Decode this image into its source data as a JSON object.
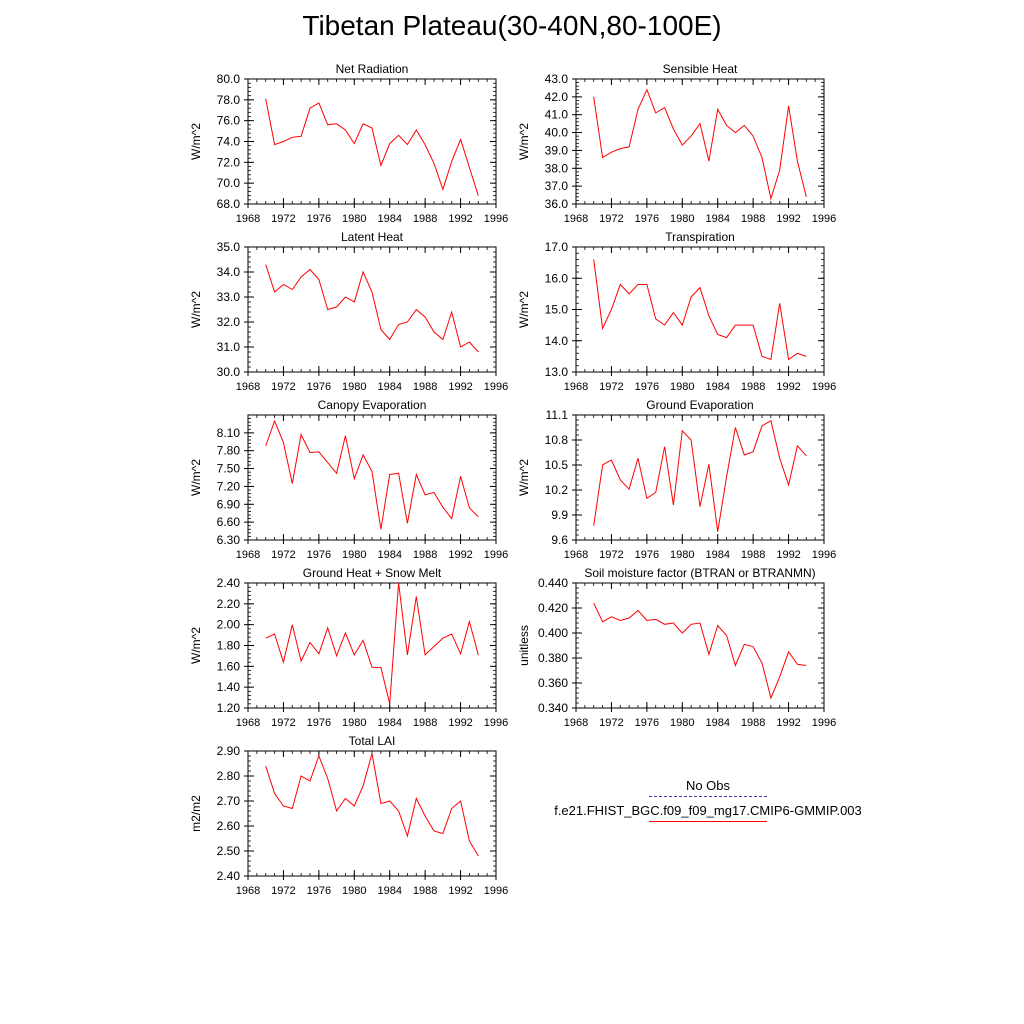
{
  "title": "Tibetan Plateau(30-40N,80-100E)",
  "line_color": "#ff0000",
  "obs_color": "#3a3aa8",
  "legend": {
    "obs_label": "No Obs",
    "model_label": "f.e21.FHIST_BGC.f09_f09_mg17.CMIP6-GMMIP.003"
  },
  "chart_data": [
    {
      "type": "line",
      "title": "Net Radiation",
      "xlabel": "",
      "ylabel": "W/m^2",
      "xlim": [
        1968,
        1996
      ],
      "ylim": [
        68,
        80
      ],
      "xticks": [
        1968,
        1972,
        1976,
        1980,
        1984,
        1988,
        1992,
        1996
      ],
      "xtick_labels": [
        "1968",
        "1972",
        "1976",
        "1980",
        "1984",
        "1988",
        "1992",
        "1996"
      ],
      "yticks": [
        68,
        70,
        72,
        74,
        76,
        78,
        80
      ],
      "ytick_labels": [
        "68.0",
        "70.0",
        "72.0",
        "74.0",
        "76.0",
        "78.0",
        "80.0"
      ],
      "x": [
        1970,
        1971,
        1972,
        1973,
        1974,
        1975,
        1976,
        1977,
        1978,
        1979,
        1980,
        1981,
        1982,
        1983,
        1984,
        1985,
        1986,
        1987,
        1988,
        1989,
        1990,
        1991,
        1992,
        1993,
        1994
      ],
      "y": [
        78.1,
        73.7,
        74.0,
        74.4,
        74.5,
        77.2,
        77.7,
        75.6,
        75.7,
        75.1,
        73.8,
        75.7,
        75.3,
        71.7,
        73.8,
        74.6,
        73.7,
        75.1,
        73.7,
        71.9,
        69.4,
        72.1,
        74.2,
        71.5,
        68.8
      ]
    },
    {
      "type": "line",
      "title": "Sensible Heat",
      "xlabel": "",
      "ylabel": "W/m^2",
      "xlim": [
        1968,
        1996
      ],
      "ylim": [
        36,
        43
      ],
      "xticks": [
        1968,
        1972,
        1976,
        1980,
        1984,
        1988,
        1992,
        1996
      ],
      "xtick_labels": [
        "1968",
        "1972",
        "1976",
        "1980",
        "1984",
        "1988",
        "1992",
        "1996"
      ],
      "yticks": [
        36,
        37,
        38,
        39,
        40,
        41,
        42,
        43
      ],
      "ytick_labels": [
        "36.0",
        "37.0",
        "38.0",
        "39.0",
        "40.0",
        "41.0",
        "42.0",
        "43.0"
      ],
      "x": [
        1970,
        1971,
        1972,
        1973,
        1974,
        1975,
        1976,
        1977,
        1978,
        1979,
        1980,
        1981,
        1982,
        1983,
        1984,
        1985,
        1986,
        1987,
        1988,
        1989,
        1990,
        1991,
        1992,
        1993,
        1994
      ],
      "y": [
        42.0,
        38.6,
        38.9,
        39.1,
        39.2,
        41.3,
        42.4,
        41.1,
        41.4,
        40.2,
        39.3,
        39.8,
        40.5,
        38.4,
        41.3,
        40.4,
        40.0,
        40.4,
        39.8,
        38.6,
        36.3,
        37.9,
        41.5,
        38.4,
        36.4
      ]
    },
    {
      "type": "line",
      "title": "Latent Heat",
      "xlabel": "",
      "ylabel": "W/m^2",
      "xlim": [
        1968,
        1996
      ],
      "ylim": [
        30,
        35
      ],
      "xticks": [
        1968,
        1972,
        1976,
        1980,
        1984,
        1988,
        1992,
        1996
      ],
      "xtick_labels": [
        "1968",
        "1972",
        "1976",
        "1980",
        "1984",
        "1988",
        "1992",
        "1996"
      ],
      "yticks": [
        30,
        31,
        32,
        33,
        34,
        35
      ],
      "ytick_labels": [
        "30.0",
        "31.0",
        "32.0",
        "33.0",
        "34.0",
        "35.0"
      ],
      "x": [
        1970,
        1971,
        1972,
        1973,
        1974,
        1975,
        1976,
        1977,
        1978,
        1979,
        1980,
        1981,
        1982,
        1983,
        1984,
        1985,
        1986,
        1987,
        1988,
        1989,
        1990,
        1991,
        1992,
        1993,
        1994
      ],
      "y": [
        34.3,
        33.2,
        33.5,
        33.3,
        33.8,
        34.1,
        33.7,
        32.5,
        32.6,
        33.0,
        32.8,
        34.0,
        33.2,
        31.7,
        31.3,
        31.9,
        32.0,
        32.5,
        32.2,
        31.6,
        31.3,
        32.4,
        31.0,
        31.2,
        30.8
      ]
    },
    {
      "type": "line",
      "title": "Transpiration",
      "xlabel": "",
      "ylabel": "W/m^2",
      "xlim": [
        1968,
        1996
      ],
      "ylim": [
        13,
        17
      ],
      "xticks": [
        1968,
        1972,
        1976,
        1980,
        1984,
        1988,
        1992,
        1996
      ],
      "xtick_labels": [
        "1968",
        "1972",
        "1976",
        "1980",
        "1984",
        "1988",
        "1992",
        "1996"
      ],
      "yticks": [
        13,
        14,
        15,
        16,
        17
      ],
      "ytick_labels": [
        "13.0",
        "14.0",
        "15.0",
        "16.0",
        "17.0"
      ],
      "x": [
        1970,
        1971,
        1972,
        1973,
        1974,
        1975,
        1976,
        1977,
        1978,
        1979,
        1980,
        1981,
        1982,
        1983,
        1984,
        1985,
        1986,
        1987,
        1988,
        1989,
        1990,
        1991,
        1992,
        1993,
        1994
      ],
      "y": [
        16.6,
        14.4,
        15.0,
        15.8,
        15.5,
        15.8,
        15.8,
        14.7,
        14.5,
        14.9,
        14.5,
        15.4,
        15.7,
        14.8,
        14.2,
        14.1,
        14.5,
        14.5,
        14.5,
        13.5,
        13.4,
        15.2,
        13.4,
        13.6,
        13.5
      ]
    },
    {
      "type": "line",
      "title": "Canopy Evaporation",
      "xlabel": "",
      "ylabel": "W/m^2",
      "xlim": [
        1968,
        1996
      ],
      "ylim": [
        6.3,
        8.4
      ],
      "xticks": [
        1968,
        1972,
        1976,
        1980,
        1984,
        1988,
        1992,
        1996
      ],
      "xtick_labels": [
        "1968",
        "1972",
        "1976",
        "1980",
        "1984",
        "1988",
        "1992",
        "1996"
      ],
      "yticks": [
        6.3,
        6.6,
        6.9,
        7.2,
        7.5,
        7.8,
        8.1
      ],
      "ytick_labels": [
        "6.30",
        "6.60",
        "6.90",
        "7.20",
        "7.50",
        "7.80",
        "8.10"
      ],
      "x": [
        1970,
        1971,
        1972,
        1973,
        1974,
        1975,
        1976,
        1977,
        1978,
        1979,
        1980,
        1981,
        1982,
        1983,
        1984,
        1985,
        1986,
        1987,
        1988,
        1989,
        1990,
        1991,
        1992,
        1993,
        1994
      ],
      "y": [
        7.88,
        8.3,
        7.94,
        7.25,
        8.07,
        7.77,
        7.78,
        7.6,
        7.42,
        8.05,
        7.33,
        7.73,
        7.45,
        6.48,
        7.4,
        7.42,
        6.58,
        7.4,
        7.06,
        7.1,
        6.85,
        6.66,
        7.37,
        6.84,
        6.69
      ]
    },
    {
      "type": "line",
      "title": "Ground Evaporation",
      "xlabel": "",
      "ylabel": "W/m^2",
      "xlim": [
        1968,
        1996
      ],
      "ylim": [
        9.6,
        11.1
      ],
      "xticks": [
        1968,
        1972,
        1976,
        1980,
        1984,
        1988,
        1992,
        1996
      ],
      "xtick_labels": [
        "1968",
        "1972",
        "1976",
        "1980",
        "1984",
        "1988",
        "1992",
        "1996"
      ],
      "yticks": [
        9.6,
        9.9,
        10.2,
        10.5,
        10.8,
        11.1
      ],
      "ytick_labels": [
        "9.6",
        "9.9",
        "10.2",
        "10.5",
        "10.8",
        "11.1"
      ],
      "x": [
        1970,
        1971,
        1972,
        1973,
        1974,
        1975,
        1976,
        1977,
        1978,
        1979,
        1980,
        1981,
        1982,
        1983,
        1984,
        1985,
        1986,
        1987,
        1988,
        1989,
        1990,
        1991,
        1992,
        1993,
        1994
      ],
      "y": [
        9.77,
        10.5,
        10.56,
        10.32,
        10.21,
        10.58,
        10.1,
        10.17,
        10.72,
        10.02,
        10.91,
        10.8,
        10.0,
        10.51,
        9.7,
        10.36,
        10.95,
        10.62,
        10.66,
        10.97,
        11.03,
        10.58,
        10.26,
        10.73,
        10.61
      ]
    },
    {
      "type": "line",
      "title": "Ground Heat + Snow Melt",
      "xlabel": "",
      "ylabel": "W/m^2",
      "xlim": [
        1968,
        1996
      ],
      "ylim": [
        1.2,
        2.4
      ],
      "xticks": [
        1968,
        1972,
        1976,
        1980,
        1984,
        1988,
        1992,
        1996
      ],
      "xtick_labels": [
        "1968",
        "1972",
        "1976",
        "1980",
        "1984",
        "1988",
        "1992",
        "1996"
      ],
      "yticks": [
        1.2,
        1.4,
        1.6,
        1.8,
        2.0,
        2.2,
        2.4
      ],
      "ytick_labels": [
        "1.20",
        "1.40",
        "1.60",
        "1.80",
        "2.00",
        "2.20",
        "2.40"
      ],
      "x": [
        1970,
        1971,
        1972,
        1973,
        1974,
        1975,
        1976,
        1977,
        1978,
        1979,
        1980,
        1981,
        1982,
        1983,
        1984,
        1985,
        1986,
        1987,
        1988,
        1989,
        1990,
        1991,
        1992,
        1993,
        1994
      ],
      "y": [
        1.87,
        1.91,
        1.64,
        2.0,
        1.65,
        1.83,
        1.72,
        1.97,
        1.7,
        1.92,
        1.71,
        1.85,
        1.59,
        1.59,
        1.24,
        2.4,
        1.71,
        2.27,
        1.71,
        1.79,
        1.87,
        1.91,
        1.72,
        2.03,
        1.71
      ]
    },
    {
      "type": "line",
      "title": "Soil moisture factor (BTRAN or BTRANMN)",
      "xlabel": "",
      "ylabel": "unitless",
      "xlim": [
        1968,
        1996
      ],
      "ylim": [
        0.34,
        0.44
      ],
      "xticks": [
        1968,
        1972,
        1976,
        1980,
        1984,
        1988,
        1992,
        1996
      ],
      "xtick_labels": [
        "1968",
        "1972",
        "1976",
        "1980",
        "1984",
        "1988",
        "1992",
        "1996"
      ],
      "yticks": [
        0.34,
        0.36,
        0.38,
        0.4,
        0.42,
        0.44
      ],
      "ytick_labels": [
        "0.340",
        "0.360",
        "0.380",
        "0.400",
        "0.420",
        "0.440"
      ],
      "x": [
        1970,
        1971,
        1972,
        1973,
        1974,
        1975,
        1976,
        1977,
        1978,
        1979,
        1980,
        1981,
        1982,
        1983,
        1984,
        1985,
        1986,
        1987,
        1988,
        1989,
        1990,
        1991,
        1992,
        1993,
        1994
      ],
      "y": [
        0.424,
        0.409,
        0.413,
        0.41,
        0.412,
        0.418,
        0.41,
        0.411,
        0.407,
        0.408,
        0.4,
        0.407,
        0.408,
        0.383,
        0.406,
        0.398,
        0.374,
        0.391,
        0.389,
        0.376,
        0.348,
        0.365,
        0.385,
        0.375,
        0.374
      ]
    },
    {
      "type": "line",
      "title": "Total LAI",
      "xlabel": "",
      "ylabel": "m2/m2",
      "xlim": [
        1968,
        1996
      ],
      "ylim": [
        2.4,
        2.9
      ],
      "xticks": [
        1968,
        1972,
        1976,
        1980,
        1984,
        1988,
        1992,
        1996
      ],
      "xtick_labels": [
        "1968",
        "1972",
        "1976",
        "1980",
        "1984",
        "1988",
        "1992",
        "1996"
      ],
      "yticks": [
        2.4,
        2.5,
        2.6,
        2.7,
        2.8,
        2.9
      ],
      "ytick_labels": [
        "2.40",
        "2.50",
        "2.60",
        "2.70",
        "2.80",
        "2.90"
      ],
      "x": [
        1970,
        1971,
        1972,
        1973,
        1974,
        1975,
        1976,
        1977,
        1978,
        1979,
        1980,
        1981,
        1982,
        1983,
        1984,
        1985,
        1986,
        1987,
        1988,
        1989,
        1990,
        1991,
        1992,
        1993,
        1994
      ],
      "y": [
        2.84,
        2.73,
        2.68,
        2.67,
        2.8,
        2.78,
        2.88,
        2.79,
        2.66,
        2.71,
        2.68,
        2.76,
        2.89,
        2.69,
        2.7,
        2.66,
        2.56,
        2.71,
        2.64,
        2.58,
        2.57,
        2.67,
        2.7,
        2.54,
        2.48
      ]
    }
  ]
}
